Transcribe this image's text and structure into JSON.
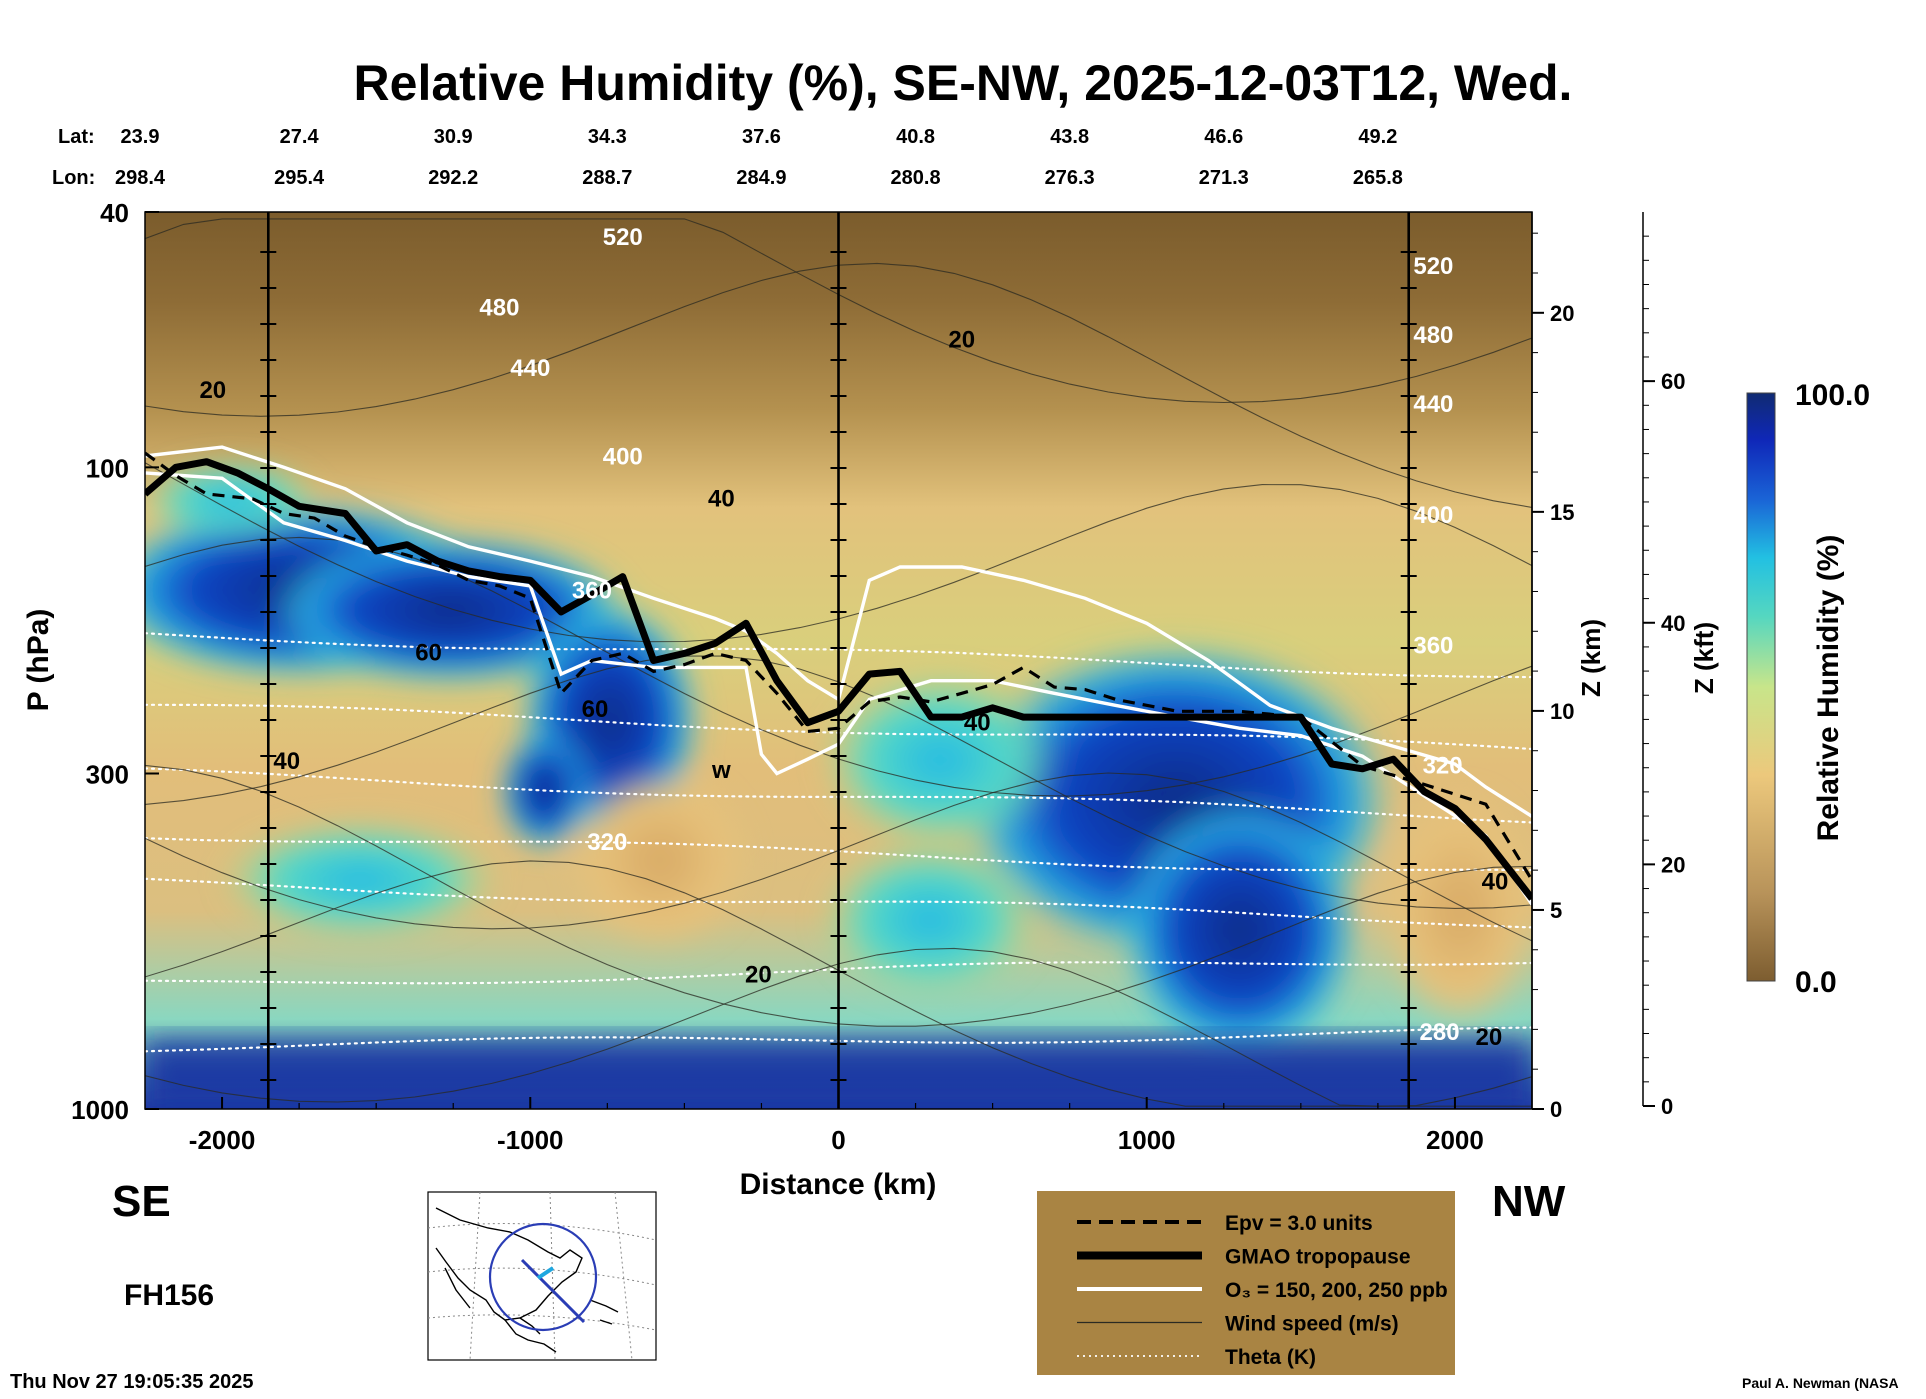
{
  "chart_data": {
    "type": "heatmap",
    "title": "Relative Humidity (%), SE-NW, 2025-12-03T12, Wed.",
    "xlabel": "Distance (km)",
    "ylabel": "P (hPa)",
    "right_axis_1_label": "Z (km)",
    "right_axis_2_label": "Z (kft)",
    "colorbar_label": "Relative Humidity (%)",
    "colorbar_min": "0.0",
    "colorbar_max": "100.0",
    "xlim": [
      -2250,
      2250
    ],
    "ylim": [
      1000,
      40
    ],
    "y_log_scale": true,
    "x_ticks": [
      -2000,
      -1000,
      0,
      1000,
      2000
    ],
    "y_ticks": [
      40,
      100,
      300,
      1000
    ],
    "z_km_ticks": [
      0,
      5,
      10,
      15,
      20
    ],
    "z_kft_ticks": [
      0,
      20,
      40,
      60
    ],
    "z_kft_range": [
      0,
      74
    ],
    "lat_label": "Lat:",
    "lon_label": "Lon:",
    "lat_ticks": [
      "23.9",
      "27.4",
      "30.9",
      "34.3",
      "37.6",
      "40.8",
      "43.8",
      "46.6",
      "49.2"
    ],
    "lon_ticks": [
      "298.4",
      "295.4",
      "292.2",
      "288.7",
      "284.9",
      "280.8",
      "276.3",
      "271.3",
      "265.8"
    ],
    "lat_lon_x": [
      -2250,
      -1750,
      -1250,
      -750,
      -250,
      250,
      750,
      1250,
      1750
    ],
    "vertical_markers_x": [
      -1850,
      0,
      1850
    ],
    "theta_labels": [
      {
        "text": "520",
        "x": -700,
        "p": 45
      },
      {
        "text": "480",
        "x": -1100,
        "p": 58
      },
      {
        "text": "440",
        "x": -1000,
        "p": 72
      },
      {
        "text": "400",
        "x": -700,
        "p": 99
      },
      {
        "text": "360",
        "x": -800,
        "p": 160
      },
      {
        "text": "320",
        "x": -750,
        "p": 395
      },
      {
        "text": "280",
        "x": 1950,
        "p": 780
      },
      {
        "text": "520",
        "x": 1930,
        "p": 50
      },
      {
        "text": "480",
        "x": 1930,
        "p": 64
      },
      {
        "text": "440",
        "x": 1930,
        "p": 82
      },
      {
        "text": "400",
        "x": 1930,
        "p": 122
      },
      {
        "text": "360",
        "x": 1930,
        "p": 195
      },
      {
        "text": "320",
        "x": 1960,
        "p": 300
      }
    ],
    "wind_labels": [
      {
        "text": "20",
        "x": -2030,
        "p": 78
      },
      {
        "text": "20",
        "x": 400,
        "p": 65
      },
      {
        "text": "40",
        "x": -380,
        "p": 115
      },
      {
        "text": "60",
        "x": -1330,
        "p": 200
      },
      {
        "text": "60",
        "x": -790,
        "p": 245
      },
      {
        "text": "40",
        "x": -1790,
        "p": 295
      },
      {
        "text": "40",
        "x": 450,
        "p": 257
      },
      {
        "text": "20",
        "x": -260,
        "p": 635
      },
      {
        "text": "40",
        "x": 2130,
        "p": 455
      },
      {
        "text": "20",
        "x": 2110,
        "p": 795
      },
      {
        "text": "w",
        "x": -380,
        "p": 305
      }
    ],
    "tropopause": {
      "x": [
        -2250,
        -2150,
        -2050,
        -1950,
        -1850,
        -1750,
        -1600,
        -1500,
        -1400,
        -1300,
        -1200,
        -1100,
        -1000,
        -900,
        -800,
        -700,
        -600,
        -500,
        -400,
        -300,
        -200,
        -100,
        0,
        100,
        200,
        300,
        400,
        500,
        600,
        800,
        1000,
        1200,
        1500,
        1600,
        1700,
        1800,
        1900,
        2000,
        2100,
        2250
      ],
      "p": [
        110,
        100,
        98,
        102,
        108,
        115,
        118,
        135,
        132,
        140,
        145,
        148,
        150,
        168,
        158,
        148,
        200,
        195,
        188,
        175,
        215,
        250,
        240,
        210,
        208,
        245,
        245,
        237,
        245,
        245,
        245,
        245,
        245,
        290,
        295,
        285,
        320,
        340,
        380,
        470
      ]
    },
    "ozone_contour_upper": {
      "x": [
        -2250,
        -2000,
        -1800,
        -1600,
        -1400,
        -1200,
        -1000,
        -800,
        -600,
        -400,
        -300,
        -200,
        -100,
        0,
        100,
        200,
        400,
        600,
        800,
        1000,
        1200,
        1400,
        1600,
        1800,
        2000,
        2100,
        2250
      ],
      "p": [
        96,
        93,
        100,
        108,
        122,
        133,
        140,
        148,
        160,
        172,
        180,
        195,
        215,
        230,
        150,
        143,
        143,
        150,
        160,
        175,
        200,
        235,
        255,
        272,
        290,
        315,
        350
      ]
    },
    "ozone_contour_lower": {
      "x": [
        -2250,
        -2000,
        -1800,
        -1600,
        -1400,
        -1200,
        -1000,
        -900,
        -800,
        -600,
        -400,
        -300,
        -250,
        -200,
        -100,
        0,
        100,
        300,
        500,
        700,
        900,
        1100,
        1300,
        1500,
        1700,
        1900,
        2100,
        2250
      ],
      "p": [
        102,
        104,
        122,
        130,
        140,
        148,
        153,
        210,
        200,
        205,
        205,
        205,
        280,
        300,
        285,
        270,
        230,
        215,
        215,
        225,
        235,
        245,
        255,
        262,
        282,
        325,
        375,
        480
      ]
    },
    "epv_contour": {
      "x": [
        -2250,
        -2150,
        -2050,
        -1900,
        -1800,
        -1700,
        -1600,
        -1500,
        -1400,
        -1300,
        -1200,
        -1100,
        -1000,
        -900,
        -800,
        -700,
        -600,
        -500,
        -400,
        -300,
        -200,
        -100,
        0,
        100,
        200,
        300,
        400,
        500,
        600,
        700,
        800,
        900,
        1100,
        1300,
        1500,
        1700,
        1900,
        2100,
        2250
      ],
      "p": [
        95,
        103,
        110,
        112,
        118,
        120,
        128,
        133,
        137,
        142,
        150,
        153,
        160,
        225,
        200,
        195,
        208,
        203,
        195,
        200,
        225,
        258,
        255,
        232,
        228,
        232,
        225,
        218,
        205,
        220,
        222,
        230,
        240,
        240,
        245,
        292,
        312,
        335,
        440
      ]
    },
    "theta_lines": [
      {
        "label": "280",
        "y_left": 800,
        "y_right": 760
      },
      {
        "label": "320",
        "y_left": 640,
        "y_right": 582
      },
      {
        "label": "360",
        "y_left": 445,
        "y_right": 512
      },
      {
        "label": "400",
        "y_left": 372,
        "y_right": 430
      },
      {
        "label": "440",
        "y_left": 300,
        "y_right": 352
      },
      {
        "label": "480",
        "y_left": 236,
        "y_right": 275
      },
      {
        "label": "520",
        "y_left": 182,
        "y_right": 210
      }
    ],
    "legend": [
      {
        "label": "Epv = 3.0 units",
        "style": "dashed-thick"
      },
      {
        "label": "GMAO tropopause",
        "style": "solid-thickest"
      },
      {
        "label": "O₃ = 150, 200, 250 ppb",
        "style": "white-thick"
      },
      {
        "label": "Wind speed (m/s)",
        "style": "thin-dark"
      },
      {
        "label": "Theta (K)",
        "style": "dotted-white"
      }
    ],
    "legend_position": "bottom-right"
  },
  "labels": {
    "se": "SE",
    "nw": "NW",
    "forecast_hour": "FH156",
    "timestamp": "Thu Nov 27 19:05:35 2025",
    "credit": "Paul A. Newman (NASA"
  },
  "colors": {
    "dry": "#8a6a36",
    "mid_dry": "#e6c47c",
    "moist": "#24c1cc",
    "saturated": "#10308e",
    "legend_bg": "#a98443",
    "map_circle": "#2a3db5"
  }
}
